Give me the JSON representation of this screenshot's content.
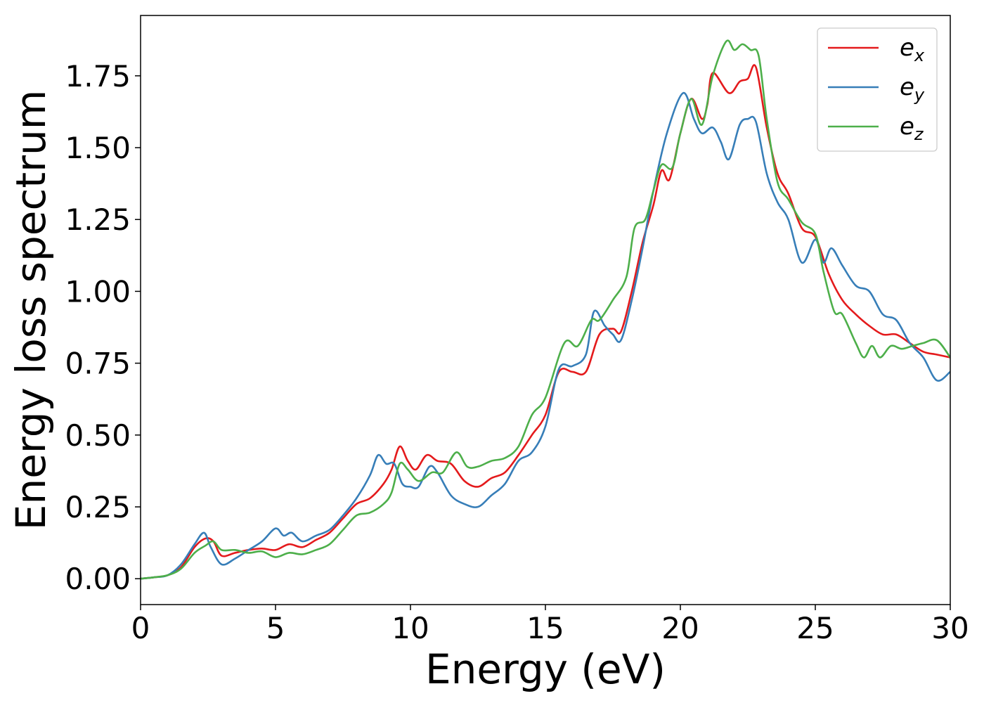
{
  "chart_data": {
    "type": "line",
    "xlabel": "Energy (eV)",
    "ylabel": "Energy loss spectrum",
    "xlim": [
      0,
      30
    ],
    "ylim": [
      -0.09,
      1.96
    ],
    "xticks": [
      0,
      5,
      10,
      15,
      20,
      25,
      30
    ],
    "xtick_labels": [
      "0",
      "5",
      "10",
      "15",
      "20",
      "25",
      "30"
    ],
    "yticks": [
      0.0,
      0.25,
      0.5,
      0.75,
      1.0,
      1.25,
      1.5,
      1.75
    ],
    "ytick_labels": [
      "0.00",
      "0.25",
      "0.50",
      "0.75",
      "1.00",
      "1.25",
      "1.50",
      "1.75"
    ],
    "grid": false,
    "legend_position": "top-right",
    "series": [
      {
        "name": "e",
        "subscript": "x",
        "color": "#e41a1c",
        "points": [
          [
            0,
            0.0
          ],
          [
            0.5,
            0.005
          ],
          [
            1.0,
            0.012
          ],
          [
            1.5,
            0.04
          ],
          [
            2.0,
            0.11
          ],
          [
            2.4,
            0.14
          ],
          [
            2.7,
            0.13
          ],
          [
            3.0,
            0.08
          ],
          [
            3.5,
            0.09
          ],
          [
            4.0,
            0.1
          ],
          [
            4.5,
            0.105
          ],
          [
            5.0,
            0.1
          ],
          [
            5.5,
            0.12
          ],
          [
            6.0,
            0.11
          ],
          [
            6.5,
            0.135
          ],
          [
            7.0,
            0.16
          ],
          [
            7.5,
            0.21
          ],
          [
            8.0,
            0.26
          ],
          [
            8.5,
            0.28
          ],
          [
            9.0,
            0.33
          ],
          [
            9.3,
            0.38
          ],
          [
            9.6,
            0.46
          ],
          [
            9.9,
            0.41
          ],
          [
            10.2,
            0.38
          ],
          [
            10.6,
            0.43
          ],
          [
            11.0,
            0.41
          ],
          [
            11.5,
            0.4
          ],
          [
            12.0,
            0.34
          ],
          [
            12.5,
            0.32
          ],
          [
            13.0,
            0.35
          ],
          [
            13.5,
            0.37
          ],
          [
            14.0,
            0.43
          ],
          [
            14.5,
            0.5
          ],
          [
            15.0,
            0.57
          ],
          [
            15.5,
            0.72
          ],
          [
            16.0,
            0.72
          ],
          [
            16.5,
            0.72
          ],
          [
            17.0,
            0.85
          ],
          [
            17.5,
            0.87
          ],
          [
            17.8,
            0.86
          ],
          [
            18.2,
            1.0
          ],
          [
            18.6,
            1.17
          ],
          [
            19.0,
            1.3
          ],
          [
            19.3,
            1.42
          ],
          [
            19.6,
            1.39
          ],
          [
            20.0,
            1.55
          ],
          [
            20.4,
            1.67
          ],
          [
            20.8,
            1.6
          ],
          [
            21.0,
            1.65
          ],
          [
            21.2,
            1.76
          ],
          [
            21.8,
            1.69
          ],
          [
            22.2,
            1.73
          ],
          [
            22.5,
            1.74
          ],
          [
            22.8,
            1.78
          ],
          [
            23.2,
            1.57
          ],
          [
            23.6,
            1.41
          ],
          [
            24.0,
            1.34
          ],
          [
            24.5,
            1.22
          ],
          [
            25.0,
            1.19
          ],
          [
            25.5,
            1.06
          ],
          [
            26.0,
            0.97
          ],
          [
            26.5,
            0.92
          ],
          [
            27.0,
            0.88
          ],
          [
            27.5,
            0.85
          ],
          [
            28.0,
            0.85
          ],
          [
            28.5,
            0.82
          ],
          [
            29.0,
            0.79
          ],
          [
            29.5,
            0.78
          ],
          [
            30.0,
            0.77
          ]
        ]
      },
      {
        "name": "e",
        "subscript": "y",
        "color": "#377eb8",
        "points": [
          [
            0,
            0.0
          ],
          [
            0.5,
            0.005
          ],
          [
            1.0,
            0.012
          ],
          [
            1.5,
            0.05
          ],
          [
            2.0,
            0.12
          ],
          [
            2.35,
            0.16
          ],
          [
            2.6,
            0.11
          ],
          [
            3.0,
            0.05
          ],
          [
            3.5,
            0.07
          ],
          [
            4.0,
            0.1
          ],
          [
            4.5,
            0.13
          ],
          [
            5.0,
            0.175
          ],
          [
            5.3,
            0.15
          ],
          [
            5.6,
            0.16
          ],
          [
            6.0,
            0.13
          ],
          [
            6.5,
            0.15
          ],
          [
            7.0,
            0.17
          ],
          [
            7.5,
            0.22
          ],
          [
            8.0,
            0.28
          ],
          [
            8.5,
            0.36
          ],
          [
            8.8,
            0.43
          ],
          [
            9.1,
            0.4
          ],
          [
            9.4,
            0.4
          ],
          [
            9.7,
            0.33
          ],
          [
            10.0,
            0.32
          ],
          [
            10.3,
            0.32
          ],
          [
            10.7,
            0.39
          ],
          [
            11.0,
            0.37
          ],
          [
            11.5,
            0.29
          ],
          [
            12.0,
            0.26
          ],
          [
            12.5,
            0.25
          ],
          [
            13.0,
            0.29
          ],
          [
            13.5,
            0.33
          ],
          [
            14.0,
            0.41
          ],
          [
            14.5,
            0.44
          ],
          [
            15.0,
            0.53
          ],
          [
            15.5,
            0.73
          ],
          [
            16.0,
            0.74
          ],
          [
            16.5,
            0.78
          ],
          [
            16.8,
            0.93
          ],
          [
            17.2,
            0.88
          ],
          [
            17.5,
            0.85
          ],
          [
            17.8,
            0.83
          ],
          [
            18.2,
            0.97
          ],
          [
            18.6,
            1.15
          ],
          [
            19.0,
            1.35
          ],
          [
            19.5,
            1.55
          ],
          [
            20.1,
            1.69
          ],
          [
            20.5,
            1.6
          ],
          [
            20.8,
            1.55
          ],
          [
            21.2,
            1.57
          ],
          [
            21.5,
            1.52
          ],
          [
            21.8,
            1.46
          ],
          [
            22.2,
            1.58
          ],
          [
            22.5,
            1.6
          ],
          [
            22.8,
            1.59
          ],
          [
            23.2,
            1.41
          ],
          [
            23.6,
            1.31
          ],
          [
            24.0,
            1.25
          ],
          [
            24.5,
            1.1
          ],
          [
            25.0,
            1.18
          ],
          [
            25.3,
            1.1
          ],
          [
            25.6,
            1.15
          ],
          [
            26.0,
            1.09
          ],
          [
            26.5,
            1.02
          ],
          [
            27.0,
            1.0
          ],
          [
            27.5,
            0.92
          ],
          [
            28.0,
            0.9
          ],
          [
            28.5,
            0.82
          ],
          [
            29.0,
            0.77
          ],
          [
            29.5,
            0.69
          ],
          [
            30.0,
            0.72
          ]
        ]
      },
      {
        "name": "e",
        "subscript": "z",
        "color": "#4daf4a",
        "points": [
          [
            0,
            0.0
          ],
          [
            0.5,
            0.005
          ],
          [
            1.0,
            0.012
          ],
          [
            1.5,
            0.035
          ],
          [
            2.0,
            0.09
          ],
          [
            2.4,
            0.115
          ],
          [
            2.7,
            0.13
          ],
          [
            3.0,
            0.1
          ],
          [
            3.5,
            0.1
          ],
          [
            4.0,
            0.09
          ],
          [
            4.5,
            0.095
          ],
          [
            5.0,
            0.075
          ],
          [
            5.5,
            0.09
          ],
          [
            6.0,
            0.085
          ],
          [
            6.5,
            0.1
          ],
          [
            7.0,
            0.12
          ],
          [
            7.5,
            0.17
          ],
          [
            8.0,
            0.22
          ],
          [
            8.5,
            0.23
          ],
          [
            9.0,
            0.26
          ],
          [
            9.3,
            0.3
          ],
          [
            9.6,
            0.4
          ],
          [
            9.9,
            0.38
          ],
          [
            10.3,
            0.34
          ],
          [
            10.8,
            0.37
          ],
          [
            11.2,
            0.37
          ],
          [
            11.7,
            0.44
          ],
          [
            12.1,
            0.39
          ],
          [
            12.5,
            0.39
          ],
          [
            13.0,
            0.41
          ],
          [
            13.5,
            0.42
          ],
          [
            14.0,
            0.46
          ],
          [
            14.5,
            0.57
          ],
          [
            15.0,
            0.63
          ],
          [
            15.7,
            0.82
          ],
          [
            16.2,
            0.81
          ],
          [
            16.7,
            0.9
          ],
          [
            17.0,
            0.9
          ],
          [
            17.5,
            0.97
          ],
          [
            18.0,
            1.05
          ],
          [
            18.3,
            1.22
          ],
          [
            18.7,
            1.25
          ],
          [
            19.0,
            1.35
          ],
          [
            19.3,
            1.44
          ],
          [
            19.7,
            1.43
          ],
          [
            20.0,
            1.55
          ],
          [
            20.4,
            1.67
          ],
          [
            20.8,
            1.58
          ],
          [
            21.2,
            1.75
          ],
          [
            21.7,
            1.87
          ],
          [
            22.0,
            1.84
          ],
          [
            22.3,
            1.86
          ],
          [
            22.6,
            1.84
          ],
          [
            22.9,
            1.82
          ],
          [
            23.2,
            1.6
          ],
          [
            23.6,
            1.38
          ],
          [
            24.0,
            1.32
          ],
          [
            24.5,
            1.24
          ],
          [
            25.0,
            1.2
          ],
          [
            25.3,
            1.07
          ],
          [
            25.7,
            0.93
          ],
          [
            26.0,
            0.92
          ],
          [
            26.5,
            0.82
          ],
          [
            26.8,
            0.77
          ],
          [
            27.1,
            0.81
          ],
          [
            27.4,
            0.77
          ],
          [
            27.8,
            0.81
          ],
          [
            28.2,
            0.8
          ],
          [
            28.6,
            0.81
          ],
          [
            29.0,
            0.82
          ],
          [
            29.5,
            0.83
          ],
          [
            30.0,
            0.77
          ]
        ]
      }
    ]
  }
}
